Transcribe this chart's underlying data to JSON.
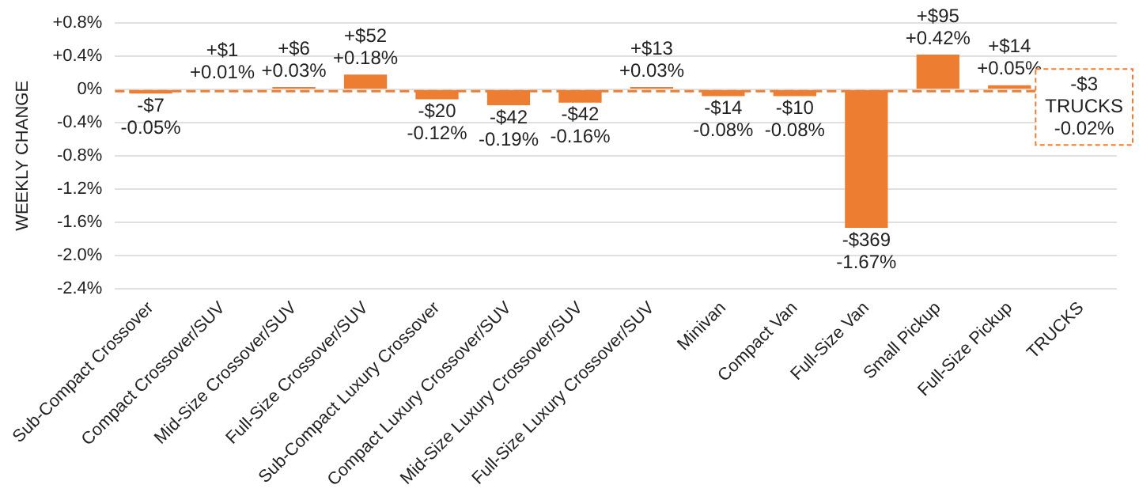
{
  "chart_data": {
    "type": "bar",
    "ylabel": "WEEKLY CHANGE",
    "categories": [
      "Sub-Compact Crossover",
      "Compact Crossover/SUV",
      "Mid-Size Crossover/SUV",
      "Full-Size Crossover/SUV",
      "Sub-Compact Luxury Crossover",
      "Compact Luxury Crossover/SUV",
      "Mid-Size Luxury Crossover/SUV",
      "Full-Size Luxury Crossover/SUV",
      "Minivan",
      "Compact Van",
      "Full-Size Van",
      "Small Pickup",
      "Full-Size Pickup",
      "TRUCKS"
    ],
    "values": [
      -0.05,
      0.01,
      0.03,
      0.18,
      -0.12,
      -0.19,
      -0.16,
      0.03,
      -0.08,
      -0.08,
      -1.67,
      0.42,
      0.05,
      null
    ],
    "value_labels": [
      "-$7\n-0.05%",
      "+$1\n+0.01%",
      "+$6\n+0.03%",
      "+$52\n+0.18%",
      "-$20\n-0.12%",
      "-$42\n-0.19%",
      "-$42\n-0.16%",
      "+$13\n+0.03%",
      "-$14\n-0.08%",
      "-$10\n-0.08%",
      "-$369\n-1.67%",
      "+$95\n+0.42%",
      "+$14\n+0.05%",
      null
    ],
    "color": "#ed7d31",
    "ylim": [
      -2.4,
      0.8
    ],
    "yticks": [
      {
        "value": -2.4,
        "label": "-2.4%"
      },
      {
        "value": -2.0,
        "label": "-2.0%"
      },
      {
        "value": -1.6,
        "label": "-1.6%"
      },
      {
        "value": -1.2,
        "label": "-1.2%"
      },
      {
        "value": -0.8,
        "label": "-0.8%"
      },
      {
        "value": -0.4,
        "label": "-0.4%"
      },
      {
        "value": 0,
        "label": "0%"
      },
      {
        "value": 0.4,
        "label": "+0.4%"
      },
      {
        "value": 0.8,
        "label": "+0.8%"
      }
    ],
    "grid": "y",
    "ref_lines": [
      {
        "axis": "y",
        "value": -0.02,
        "label": "-$3\nTRUCKS\n-0.02%",
        "color": "#ed7d31",
        "line_style": "dashed"
      }
    ]
  }
}
